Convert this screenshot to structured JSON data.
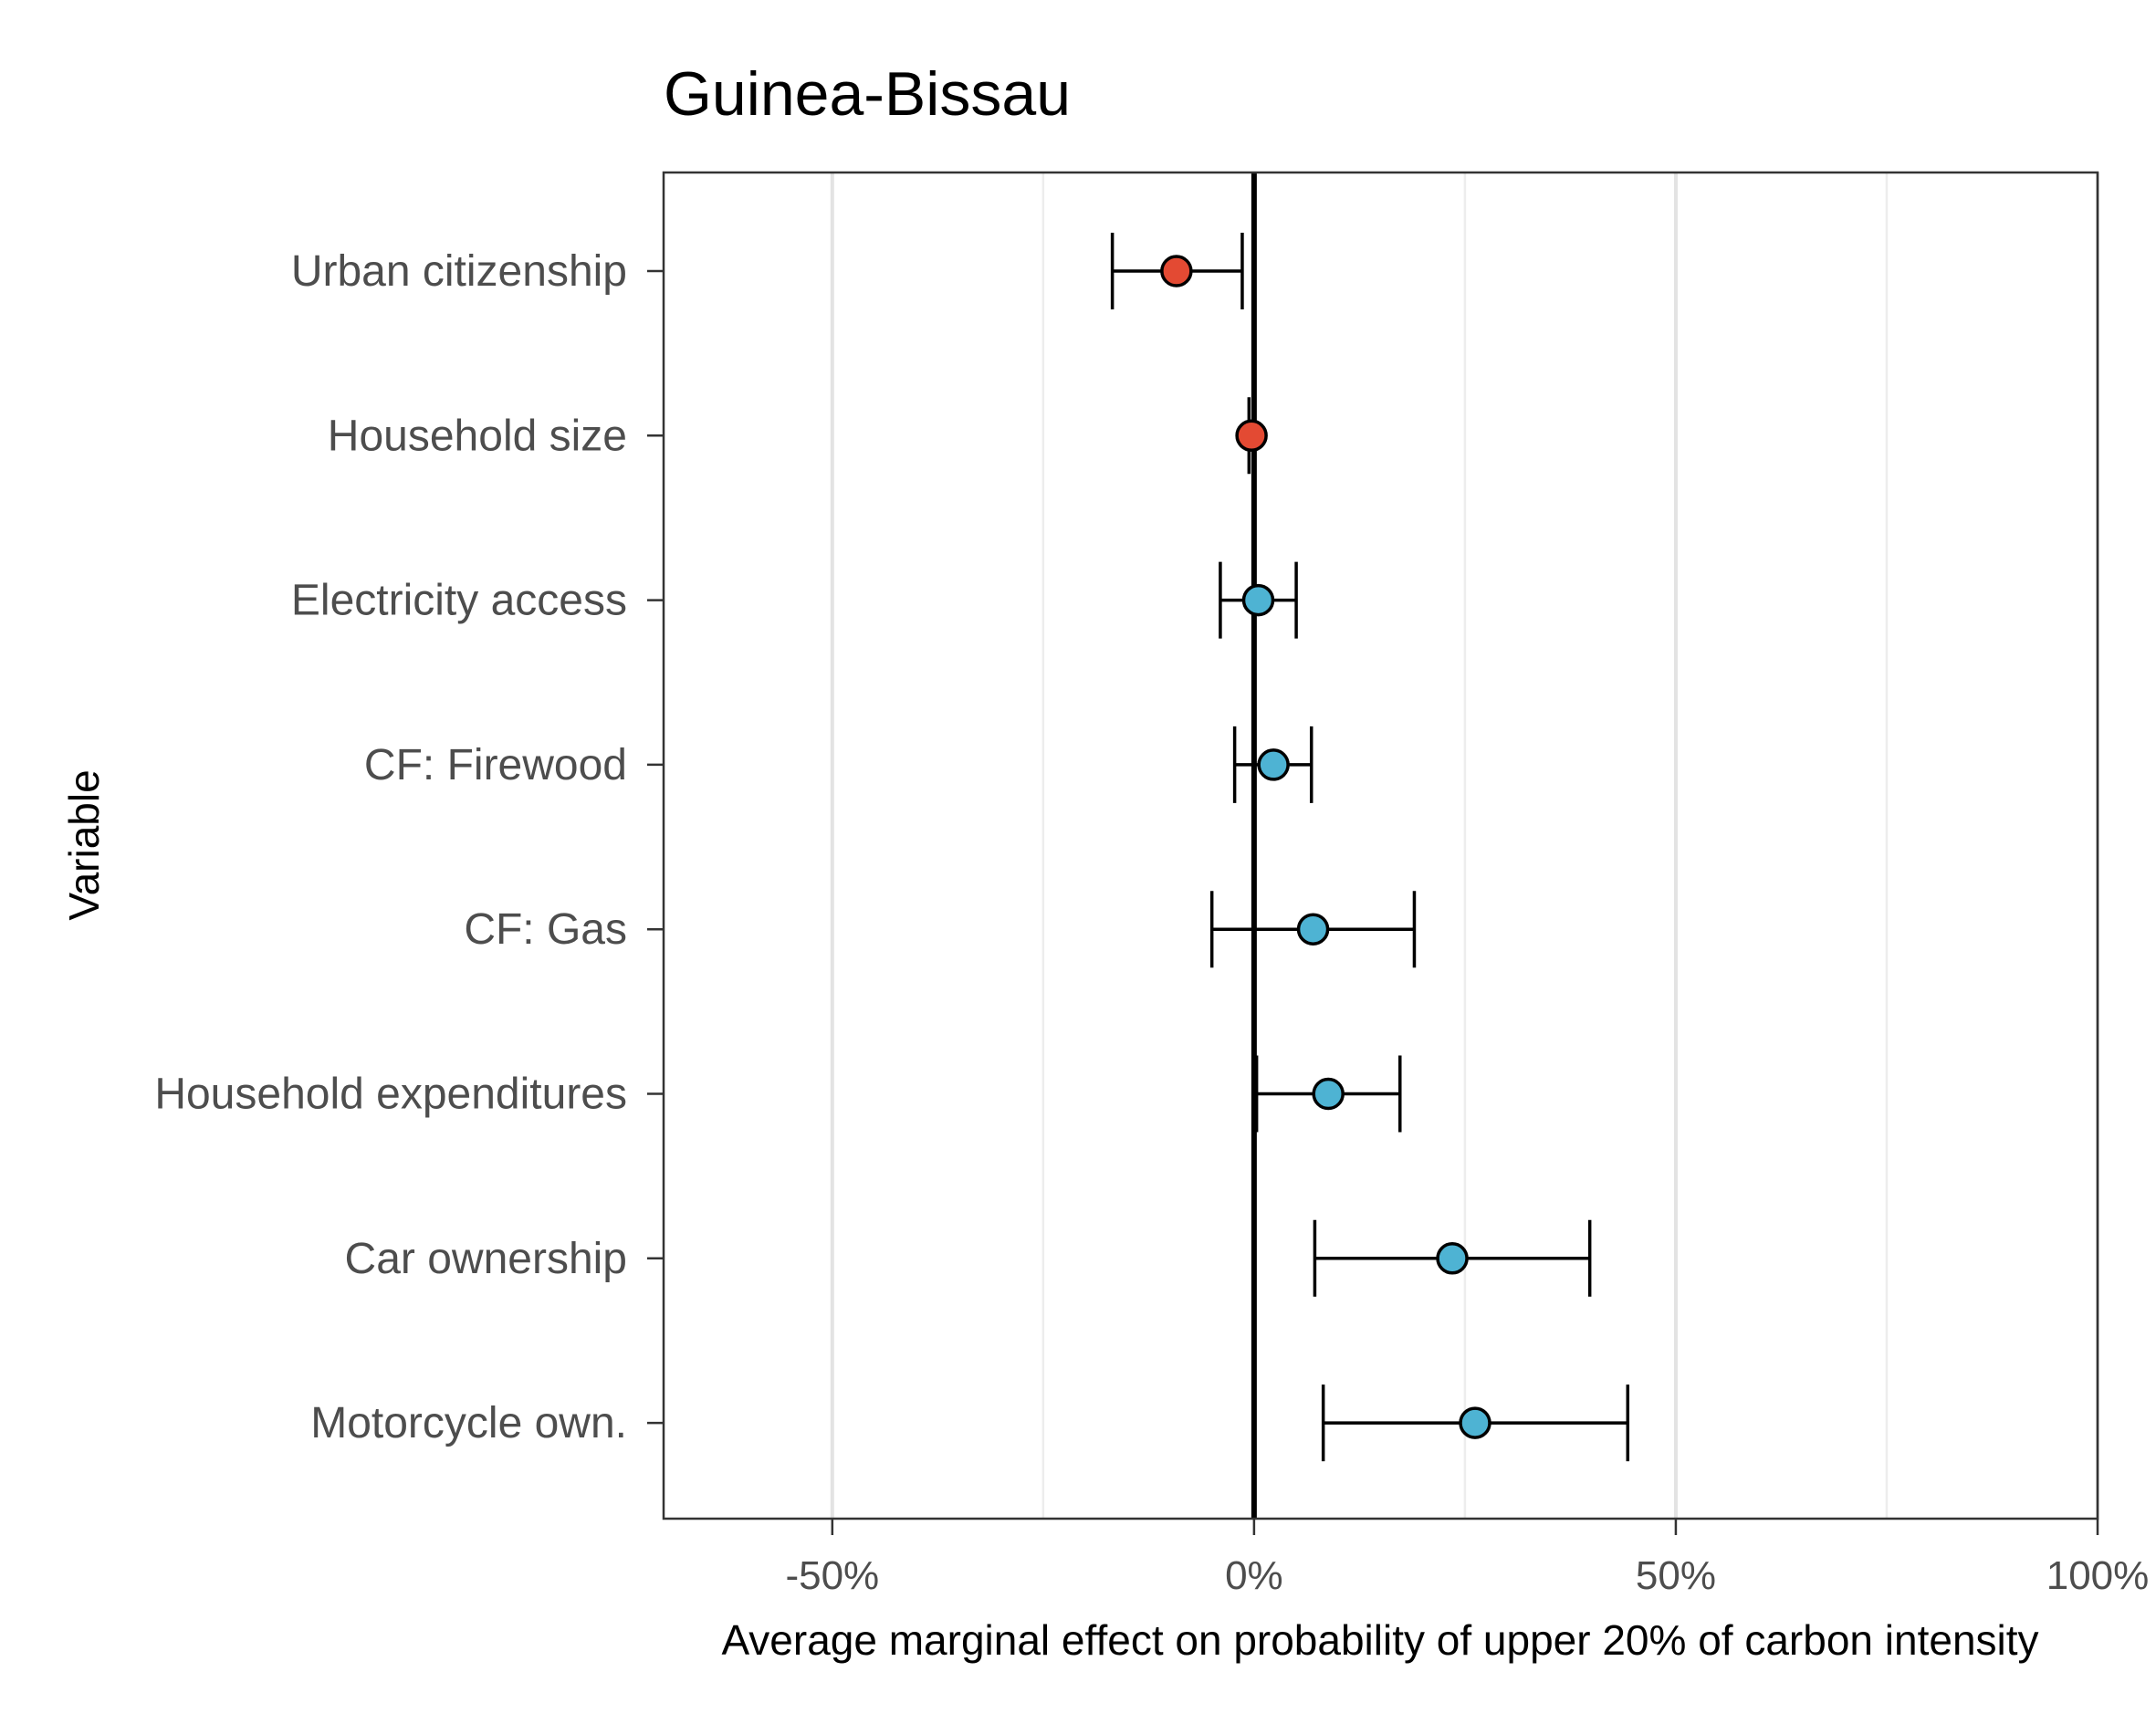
{
  "chart_data": {
    "type": "errorbar",
    "title": "Guinea-Bissau",
    "xlabel": "Average marginal effect on probability of upper 20% of carbon intensity",
    "ylabel": "Variable",
    "xlim": [
      -0.7,
      1.0
    ],
    "x_ticks": [
      -0.5,
      0.0,
      0.5,
      1.0
    ],
    "x_tick_labels": [
      "-50%",
      "0%",
      "50%",
      "100%"
    ],
    "grid": "vertical major and minor lines",
    "reference_line": 0,
    "colors": {
      "negative": "#e34a33",
      "positive": "#4eb3d3"
    },
    "points": [
      {
        "label": "Urban citizenship",
        "value": -0.092,
        "lower": -0.168,
        "upper": -0.014,
        "sign": "negative"
      },
      {
        "label": "Household size",
        "value": -0.003,
        "lower": -0.006,
        "upper": 0.0,
        "sign": "negative"
      },
      {
        "label": "Electricity access",
        "value": 0.005,
        "lower": -0.04,
        "upper": 0.05,
        "sign": "positive"
      },
      {
        "label": "CF: Firewood",
        "value": 0.023,
        "lower": -0.023,
        "upper": 0.068,
        "sign": "positive"
      },
      {
        "label": "CF: Gas",
        "value": 0.07,
        "lower": -0.05,
        "upper": 0.19,
        "sign": "positive"
      },
      {
        "label": "Household expenditures",
        "value": 0.088,
        "lower": 0.003,
        "upper": 0.173,
        "sign": "positive"
      },
      {
        "label": "Car ownership",
        "value": 0.235,
        "lower": 0.072,
        "upper": 0.398,
        "sign": "positive"
      },
      {
        "label": "Motorcycle own.",
        "value": 0.262,
        "lower": 0.082,
        "upper": 0.443,
        "sign": "positive"
      }
    ]
  }
}
